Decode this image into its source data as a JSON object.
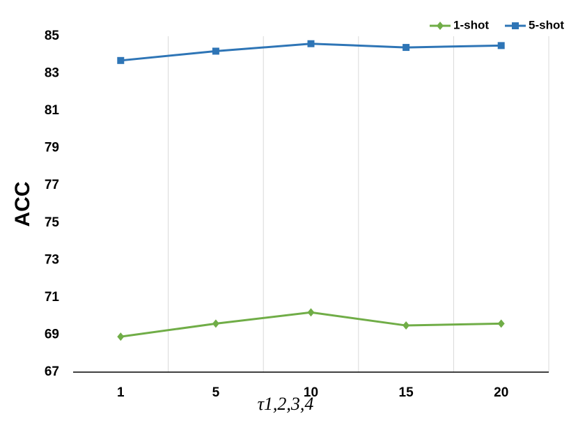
{
  "chart_data": {
    "type": "line",
    "x_label": "τ1,2,3,4",
    "y_label": "ACC",
    "categories": [
      "1",
      "5",
      "10",
      "15",
      "20"
    ],
    "series": [
      {
        "name": "1-shot",
        "color": "#70ad47",
        "marker": "diamond",
        "values": [
          68.9,
          69.6,
          70.2,
          69.5,
          69.6
        ]
      },
      {
        "name": "5-shot",
        "color": "#2e75b6",
        "marker": "square",
        "values": [
          83.7,
          84.2,
          84.6,
          84.4,
          84.5
        ]
      }
    ],
    "ylim": [
      67,
      85
    ],
    "yticks": [
      67,
      69,
      71,
      73,
      75,
      77,
      79,
      81,
      83,
      85
    ],
    "grid": true,
    "legend": "top-right"
  }
}
